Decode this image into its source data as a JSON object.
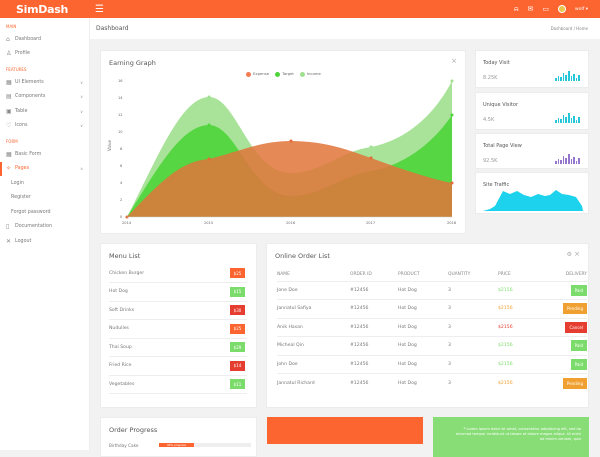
{
  "app": {
    "logo": "SimDash",
    "user": "wolf ▾"
  },
  "header": {
    "title": "Dashboard",
    "breadcrumb": "Dashboard  /  Home"
  },
  "sidebar": {
    "sections": [
      "MAIN",
      "FEATURES",
      "FORM"
    ],
    "main_items": [
      {
        "label": "Dashboard",
        "icon": "⌂"
      },
      {
        "label": "Profile",
        "icon": "♙"
      }
    ],
    "feature_items": [
      {
        "label": "UI Elements",
        "icon": "▦"
      },
      {
        "label": "Components",
        "icon": "▤"
      },
      {
        "label": "Table",
        "icon": "▣"
      },
      {
        "label": "Icons",
        "icon": "♡"
      }
    ],
    "form_items": [
      {
        "label": "Basic Form",
        "icon": "▦"
      },
      {
        "label": "Pages",
        "icon": "✧"
      }
    ],
    "sub_items": [
      "Login",
      "Register",
      "Forgot password"
    ],
    "bottom_items": [
      {
        "label": "Documentation",
        "icon": "▯"
      },
      {
        "label": "Logout",
        "icon": "✕"
      }
    ]
  },
  "earning": {
    "title": "Earning Graph",
    "close": "×"
  },
  "chart_data": {
    "type": "area",
    "title": "Earning Graph",
    "x": [
      "2014",
      "2015",
      "2016",
      "2017",
      "2018"
    ],
    "series": [
      {
        "name": "Expense",
        "color": "#f47a50",
        "values": [
          0,
          7,
          9,
          7,
          4
        ]
      },
      {
        "name": "Target",
        "color": "#4ed43a",
        "values": [
          0,
          11,
          4,
          6,
          12
        ]
      },
      {
        "name": "Income",
        "color": "#9ee08e",
        "values": [
          0,
          14,
          5,
          8,
          16
        ]
      }
    ],
    "ylabel": "Value",
    "yticks": [
      "0",
      "2",
      "4",
      "6",
      "8",
      "10",
      "12",
      "14",
      "16"
    ],
    "ylim": [
      0,
      16
    ],
    "legend_position": "top"
  },
  "stats": [
    {
      "label": "Today Visit",
      "value": "8.25K",
      "color": "#26c6da"
    },
    {
      "label": "Unique Visitor",
      "value": "4.5K",
      "color": "#26c6da"
    },
    {
      "label": "Total Page View",
      "value": "92.5K",
      "color": "#9575cd"
    }
  ],
  "traffic": {
    "title": "Site Traffic"
  },
  "menu": {
    "title": "Menu List",
    "items": [
      {
        "name": "Chicken Burger",
        "price": "$25",
        "color": "#fd6530"
      },
      {
        "name": "Hot Dog",
        "price": "$15",
        "color": "#7cdc6b"
      },
      {
        "name": "Soft Drinks",
        "price": "$30",
        "color": "#e53d2f"
      },
      {
        "name": "Nudulles",
        "price": "$25",
        "color": "#fd6530"
      },
      {
        "name": "Thai Soup",
        "price": "$29",
        "color": "#7cdc6b"
      },
      {
        "name": "Fried Rice",
        "price": "$14",
        "color": "#e53d2f"
      },
      {
        "name": "Vegetables",
        "price": "$11",
        "color": "#7cdc6b"
      }
    ]
  },
  "orders": {
    "title": "Online Order List",
    "columns": [
      "NAME",
      "ORDER ID",
      "PRODUCT",
      "QUANTITY",
      "PRICE",
      "DELIVERY"
    ],
    "rows": [
      {
        "name": "Jone Doe",
        "id": "#12456",
        "product": "Hot Dog",
        "qty": "3",
        "price": "$2156",
        "pcolor": "#7cdc6b",
        "status": "Paid",
        "scolor": "#7cdc6b"
      },
      {
        "name": "Jannatul Safiya",
        "id": "#12456",
        "product": "Hot Dog",
        "qty": "3",
        "price": "$2156",
        "pcolor": "#f0a030",
        "status": "Pending",
        "scolor": "#f0a030"
      },
      {
        "name": "Anik Hasan",
        "id": "#12456",
        "product": "Hot Dog",
        "qty": "3",
        "price": "$2156",
        "pcolor": "#e53d2f",
        "status": "Cancel",
        "scolor": "#e53d2f"
      },
      {
        "name": "Micheal Qin",
        "id": "#12456",
        "product": "Hot Dog",
        "qty": "3",
        "price": "$2156",
        "pcolor": "#7cdc6b",
        "status": "Paid",
        "scolor": "#7cdc6b"
      },
      {
        "name": "John Doe",
        "id": "#12456",
        "product": "Hot Dog",
        "qty": "3",
        "price": "$2156",
        "pcolor": "#7cdc6b",
        "status": "Paid",
        "scolor": "#7cdc6b"
      },
      {
        "name": "Jannatul Richard",
        "id": "#12456",
        "product": "Hot Dog",
        "qty": "3",
        "price": "$2156",
        "pcolor": "#f0a030",
        "status": "Pending",
        "scolor": "#f0a030"
      }
    ]
  },
  "progress": {
    "title": "Order Progress",
    "item": "Birthday Cake",
    "bar": "40% progress"
  },
  "quote": {
    "text": "❝ Lorem ipsum dolor sit amet, consectetur adipisicing elit, sed do eiusmod tempor incididunt ut labore et dolore magna aliqua. Ut enim ad minim veniam, quis"
  }
}
